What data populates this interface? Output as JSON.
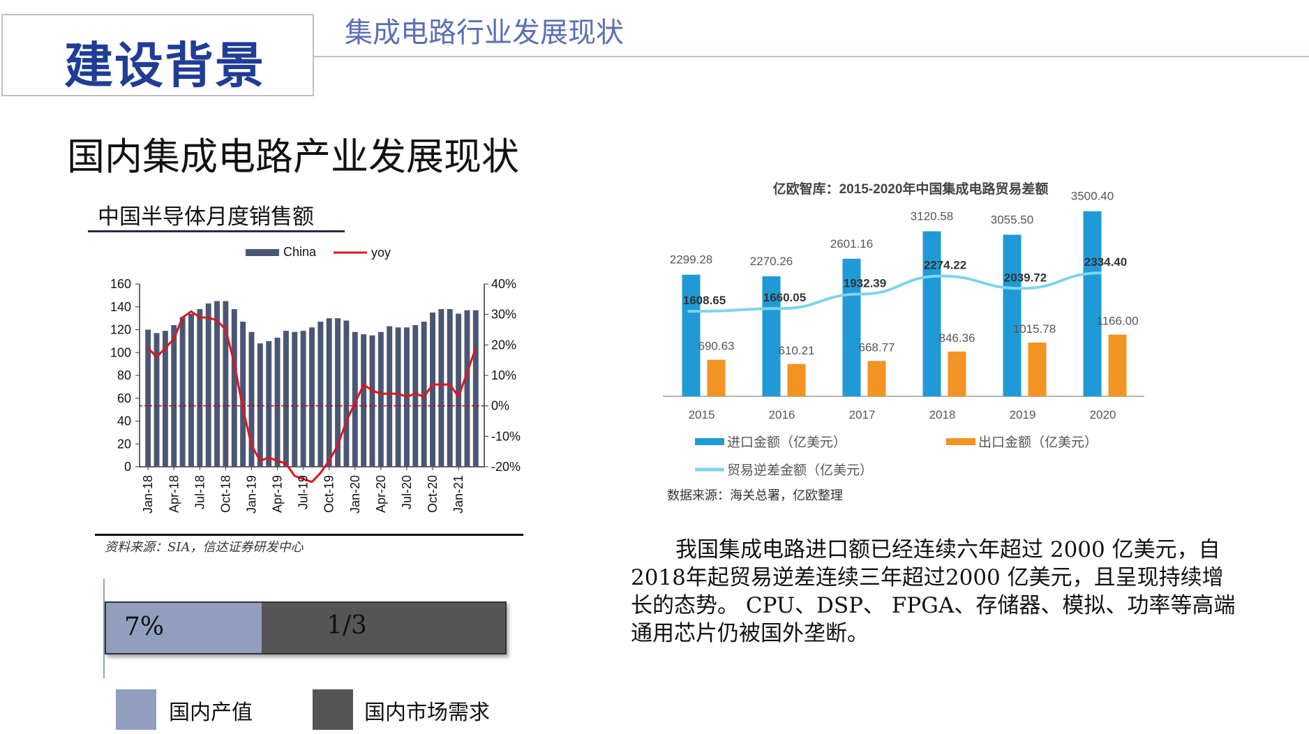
{
  "header": {
    "title": "建设背景",
    "subtitle": "集成电路行业发展现状"
  },
  "section_heading": "国内集成电路产业发展现状",
  "left_chart_title": "中国半导体月度销售额",
  "left_chart_source": "资料来源：SIA，信达证券研发中心",
  "proportion": {
    "domestic_output_label": "7%",
    "domestic_demand_label": "1/3",
    "domestic_output_fraction": 0.39,
    "legend_output": "国内产值",
    "legend_demand": "国内市场需求",
    "color_output": "#8f9fbd",
    "color_demand": "#555555"
  },
  "right_chart_source": "数据来源：海关总署，亿欧整理",
  "paragraph": "我国集成电路进口额已经连续六年超过 2000 亿美元，自2018年起贸易逆差连续三年超过2000 亿美元，且呈现持续增长的态势。 CPU、DSP、 FPGA、存储器、模拟、功率等高端通用芯片仍被国外垄断。",
  "chart_data": [
    {
      "type": "bar",
      "legend": [
        "China",
        "yoy"
      ],
      "y_left_ticks": [
        "0",
        "20",
        "40",
        "60",
        "80",
        "100",
        "120",
        "140",
        "160"
      ],
      "y_right_ticks": [
        "-20%",
        "-10%",
        "0%",
        "10%",
        "20%",
        "30%",
        "40%"
      ],
      "ylim_left": [
        0,
        160
      ],
      "ylim_right": [
        -20,
        40
      ],
      "x_tick_labels": [
        "Jan-18",
        "Apr-18",
        "Jul-18",
        "Oct-18",
        "Jan-19",
        "Apr-19",
        "Jul-19",
        "Oct-19",
        "Jan-20",
        "Apr-20",
        "Jul-20",
        "Oct-20",
        "Jan-21"
      ],
      "bar_color": "#4a5673",
      "line_color": "#e0141e",
      "series": [
        {
          "name": "China",
          "kind": "bar",
          "values": [
            120,
            117,
            119,
            124,
            131,
            134,
            138,
            143,
            145,
            145,
            138,
            127,
            118,
            108,
            110,
            113,
            119,
            118,
            119,
            122,
            127,
            130,
            130,
            128,
            118,
            116,
            115,
            118,
            123,
            122,
            122,
            124,
            127,
            135,
            138,
            138,
            134,
            137,
            137
          ]
        },
        {
          "name": "yoy",
          "kind": "line",
          "axis": "right",
          "values": [
            19,
            16,
            19,
            22,
            29,
            31,
            29,
            29,
            28,
            25,
            14,
            -1,
            -13,
            -18,
            -17,
            -18,
            -19,
            -23,
            -24,
            -25,
            -22,
            -18,
            -13,
            -5,
            1,
            7,
            5,
            4,
            4,
            4,
            3,
            4,
            3,
            7,
            7,
            7,
            3,
            11,
            19
          ]
        }
      ]
    },
    {
      "type": "bar",
      "title": "亿欧智库：2015-2020年中国集成电路贸易差额",
      "categories": [
        "2015",
        "2016",
        "2017",
        "2018",
        "2019",
        "2020"
      ],
      "ylim": [
        0,
        3800
      ],
      "series": [
        {
          "name": "进口金额（亿美元）",
          "kind": "bar",
          "color": "#1f9ad6",
          "values": [
            2299.28,
            2270.26,
            2601.16,
            3120.58,
            3055.5,
            3500.4
          ],
          "labels": [
            "2299.28",
            "2270.26",
            "2601.16",
            "3120.58",
            "3055.50",
            "3500.40"
          ]
        },
        {
          "name": "出口金额（亿美元）",
          "kind": "bar",
          "color": "#f39323",
          "values": [
            690.63,
            610.21,
            668.77,
            846.36,
            1015.78,
            1166.0
          ],
          "labels": [
            "690.63",
            "610.21",
            "668.77",
            "846.36",
            "1015.78",
            "1166.00"
          ]
        },
        {
          "name": "贸易逆差金额（亿美元）",
          "kind": "line",
          "color": "#7fd3ec",
          "values": [
            1608.65,
            1660.05,
            1932.39,
            2274.22,
            2039.72,
            2334.4
          ],
          "labels": [
            "1608.65",
            "1660.05",
            "1932.39",
            "2274.22",
            "2039.72",
            "2334.40"
          ]
        }
      ]
    }
  ]
}
